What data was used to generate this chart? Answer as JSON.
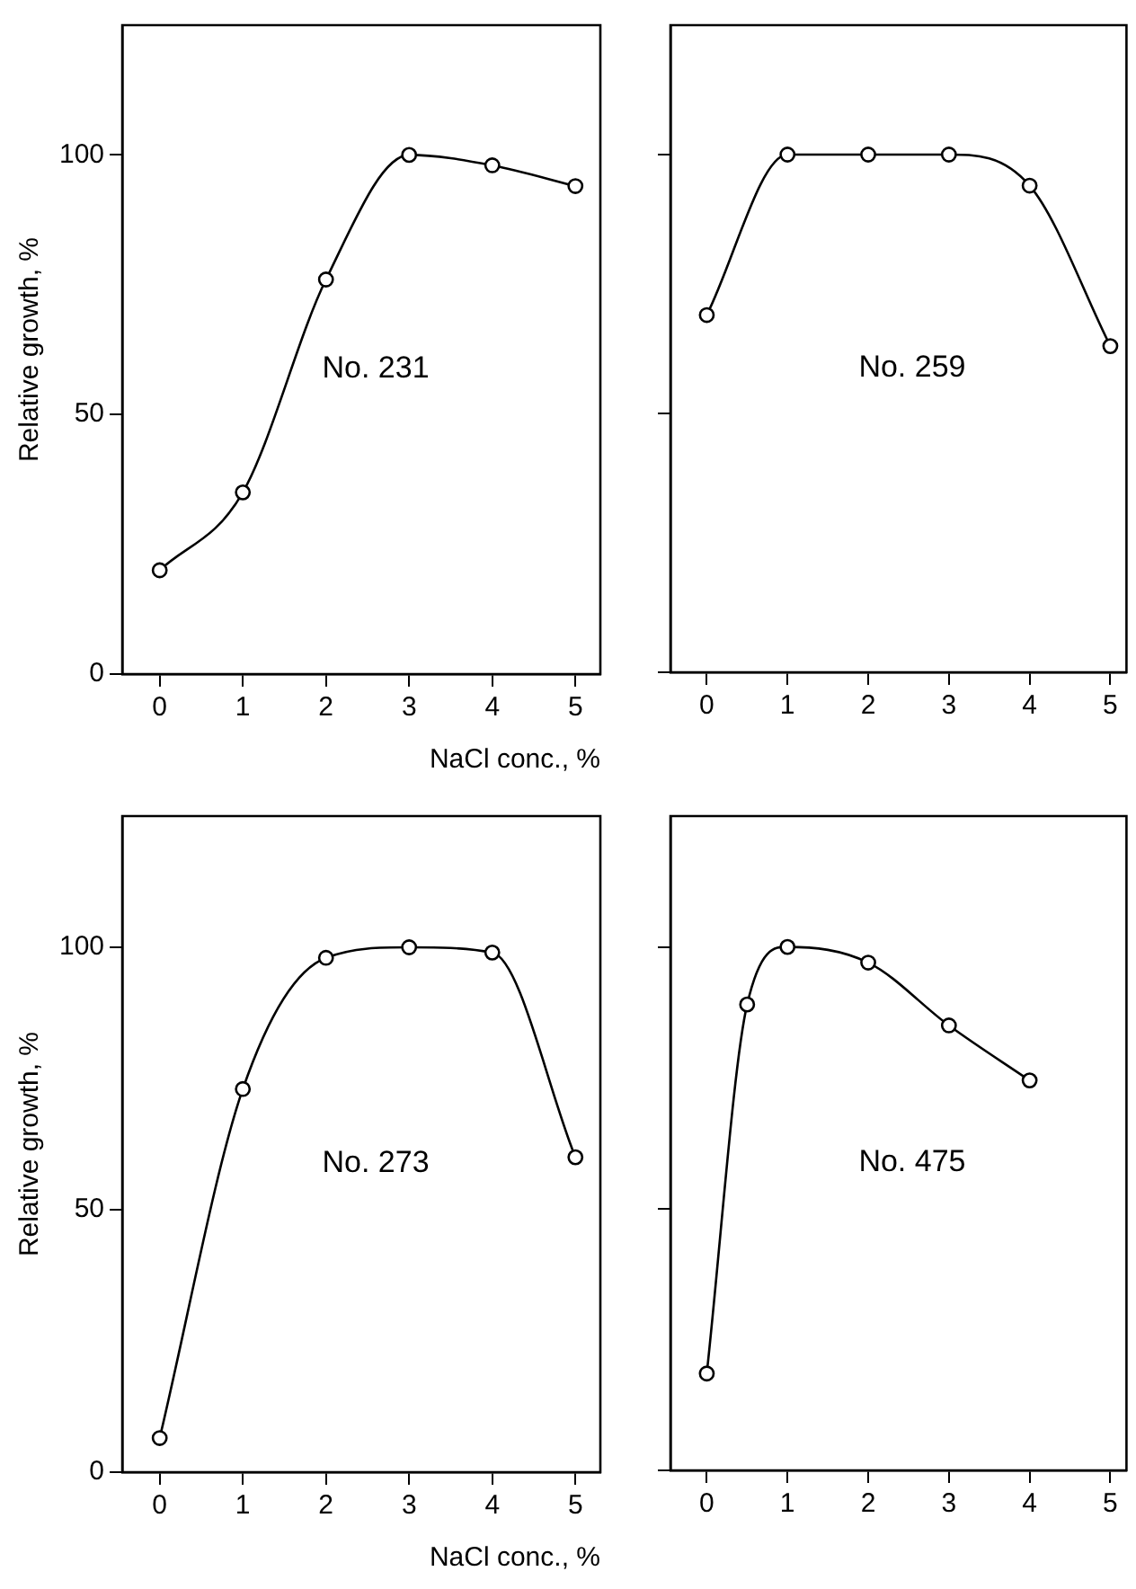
{
  "chart_data": [
    {
      "type": "line",
      "title": "No. 231",
      "xlabel": "NaCl conc., %",
      "ylabel": "Relative growth, %",
      "x": [
        0,
        1,
        2,
        3,
        4,
        5
      ],
      "color": "#000000",
      "marker": "circle",
      "values": [
        20,
        35,
        76,
        100,
        98,
        94
      ],
      "xlim": [
        -0.45,
        5.3
      ],
      "ylim": [
        0,
        125
      ],
      "xticks": [
        0,
        1,
        2,
        3,
        4,
        5
      ],
      "yticks": [
        0,
        50,
        100
      ]
    },
    {
      "type": "line",
      "title": "No. 259",
      "x": [
        0,
        1,
        2,
        3,
        4,
        5
      ],
      "color": "#000000",
      "marker": "circle",
      "values": [
        69,
        100,
        100,
        100,
        94,
        63
      ],
      "xlim": [
        -0.45,
        5.2
      ],
      "ylim": [
        0,
        125
      ],
      "xticks": [
        0,
        1,
        2,
        3,
        4,
        5
      ],
      "yticks": [
        {
          "value": 0,
          "label": null
        },
        {
          "value": 50,
          "label": null
        },
        {
          "value": 100,
          "label": null
        }
      ],
      "tick_labels": "x"
    },
    {
      "type": "line",
      "title": "No. 273",
      "xlabel": "NaCl conc., %",
      "ylabel": "Relative growth, %",
      "x": [
        0,
        1,
        2,
        3,
        4,
        5
      ],
      "color": "#000000",
      "marker": "circle",
      "values": [
        6.5,
        73,
        98,
        100,
        99,
        60
      ],
      "xlim": [
        -0.45,
        5.3
      ],
      "ylim": [
        0,
        125
      ],
      "xticks": [
        0,
        1,
        2,
        3,
        4,
        5
      ],
      "yticks": [
        0,
        50,
        100
      ]
    },
    {
      "type": "line",
      "title": "No. 475",
      "x": [
        0,
        0.5,
        1,
        2,
        3,
        4
      ],
      "color": "#000000",
      "marker": "circle",
      "values": [
        18.5,
        89,
        100,
        97,
        85,
        74.5
      ],
      "xlim": [
        -0.45,
        5.2
      ],
      "ylim": [
        0,
        125
      ],
      "xticks": [
        0,
        1,
        2,
        3,
        4,
        5
      ],
      "yticks": [
        {
          "value": 0,
          "label": null
        },
        {
          "value": 50,
          "label": null
        },
        {
          "value": 100,
          "label": null
        }
      ],
      "tick_labels": "x"
    }
  ]
}
